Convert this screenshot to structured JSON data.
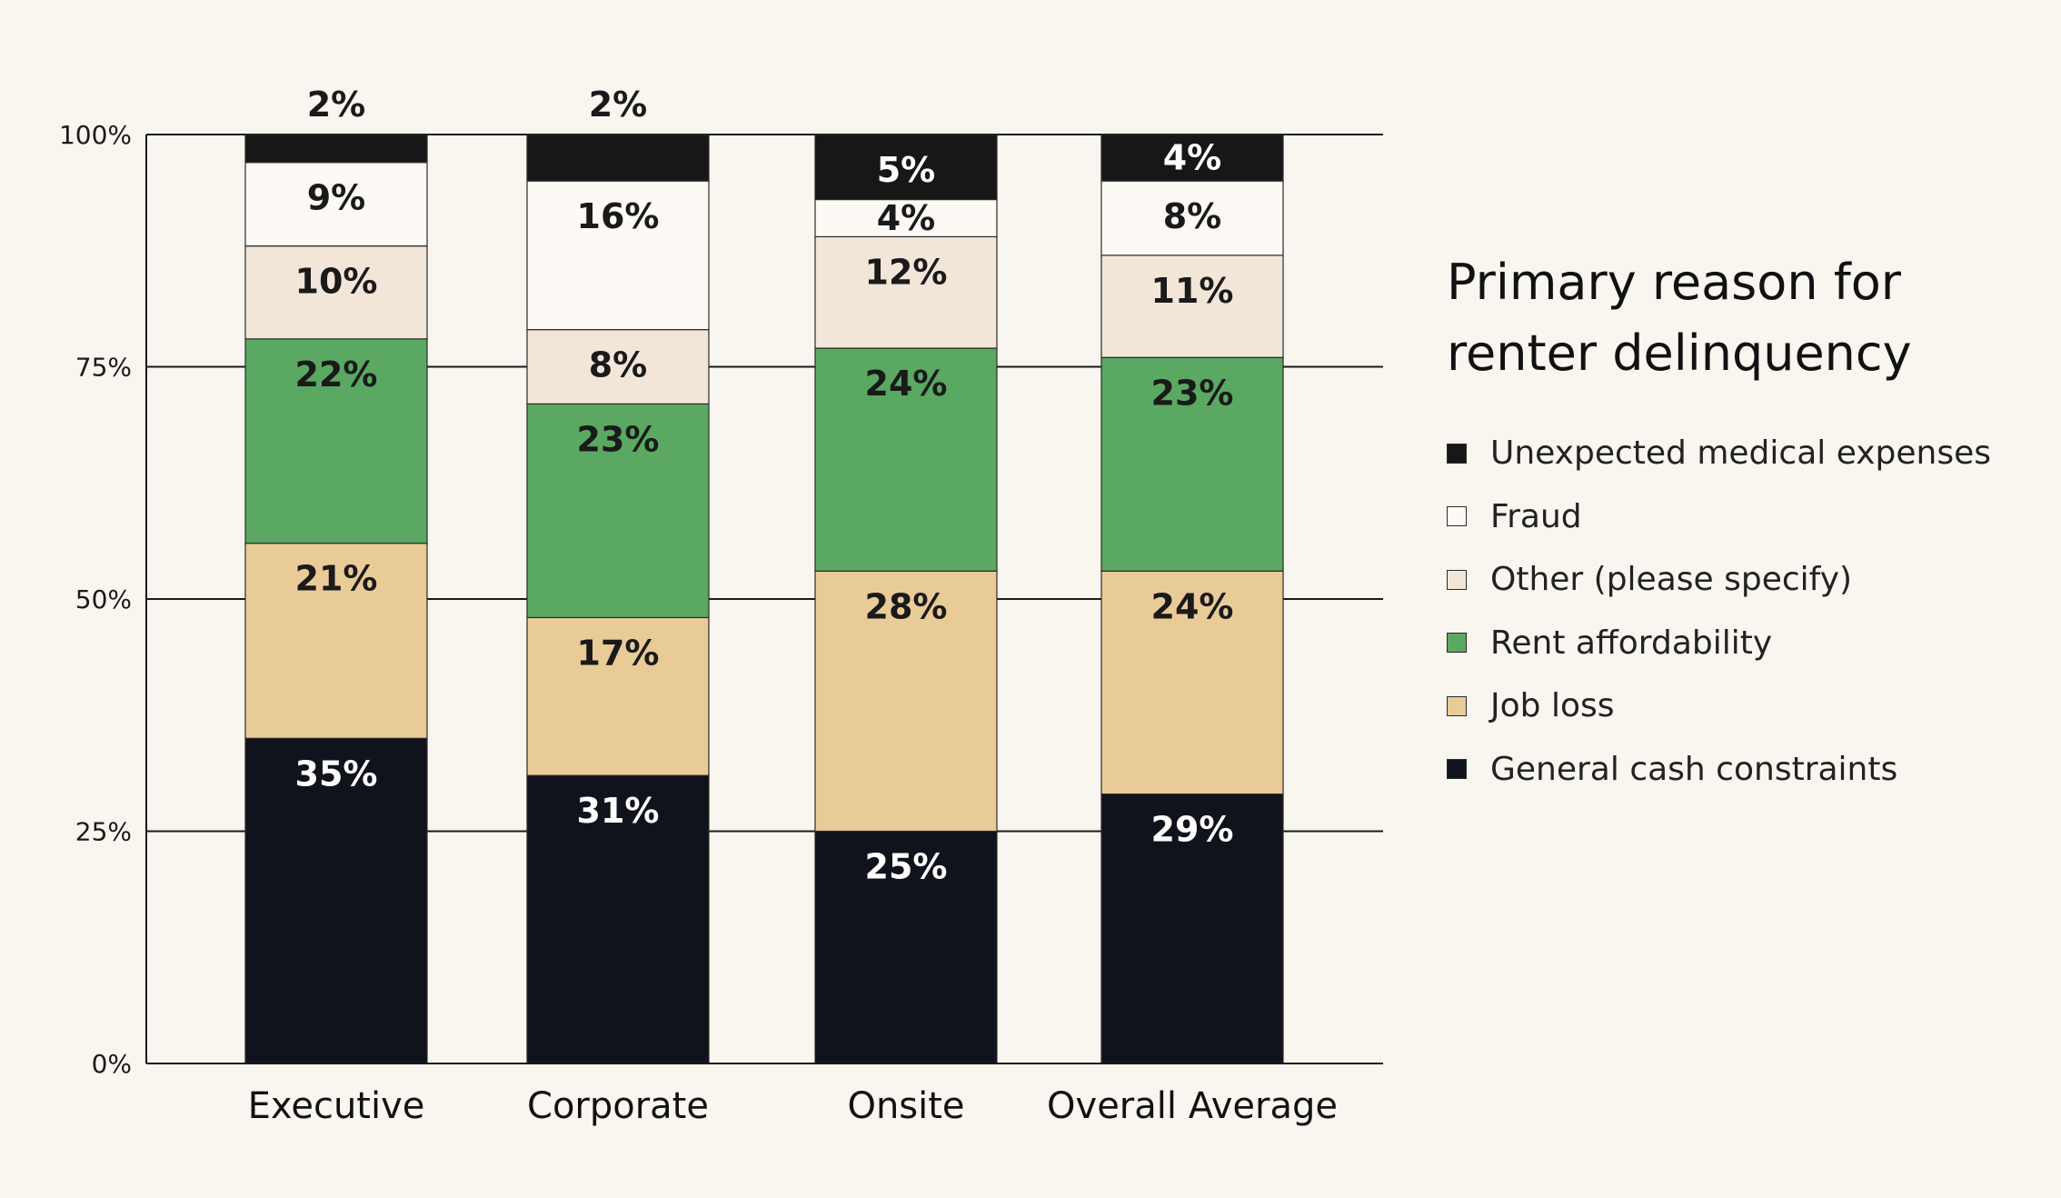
{
  "chart_data": {
    "type": "bar",
    "stacked": true,
    "title": "Primary reason for renter delinquency",
    "categories": [
      "Executive",
      "Corporate",
      "Onsite",
      "Overall Average"
    ],
    "y_ticks": [
      "0%",
      "25%",
      "50%",
      "75%",
      "100%"
    ],
    "ylim": [
      0,
      100
    ],
    "grid": true,
    "legend_position": "right",
    "series": [
      {
        "name": "General cash constraints",
        "color": "#11131c",
        "label_color": "#ffffff",
        "values": [
          35,
          31,
          25,
          29
        ],
        "labels": [
          "35%",
          "31%",
          "25%",
          "29%"
        ]
      },
      {
        "name": "Job loss",
        "color": "#e9cb98",
        "label_color": "#1a1a1a",
        "values": [
          21,
          17,
          28,
          24
        ],
        "labels": [
          "21%",
          "17%",
          "28%",
          "24%"
        ]
      },
      {
        "name": "Rent affordability",
        "color": "#5aa862",
        "label_color": "#1a1a1a",
        "values": [
          22,
          23,
          24,
          23
        ],
        "labels": [
          "22%",
          "23%",
          "24%",
          "23%"
        ]
      },
      {
        "name": "Other (please specify)",
        "color": "#f1e6d8",
        "label_color": "#1a1a1a",
        "values": [
          10,
          8,
          12,
          11
        ],
        "labels": [
          "10%",
          "8%",
          "12%",
          "11%"
        ]
      },
      {
        "name": "Fraud",
        "color": "#fdfaf5",
        "label_color": "#1a1a1a",
        "values": [
          9,
          16,
          4,
          8
        ],
        "labels": [
          "9%",
          "16%",
          "4%",
          "8%"
        ]
      },
      {
        "name": "Unexpected medical expenses",
        "color": "#171717",
        "label_color": "#ffffff",
        "values": [
          2,
          2,
          5,
          4
        ],
        "labels": [
          "2%",
          "2%",
          "5%",
          "4%"
        ]
      }
    ]
  }
}
